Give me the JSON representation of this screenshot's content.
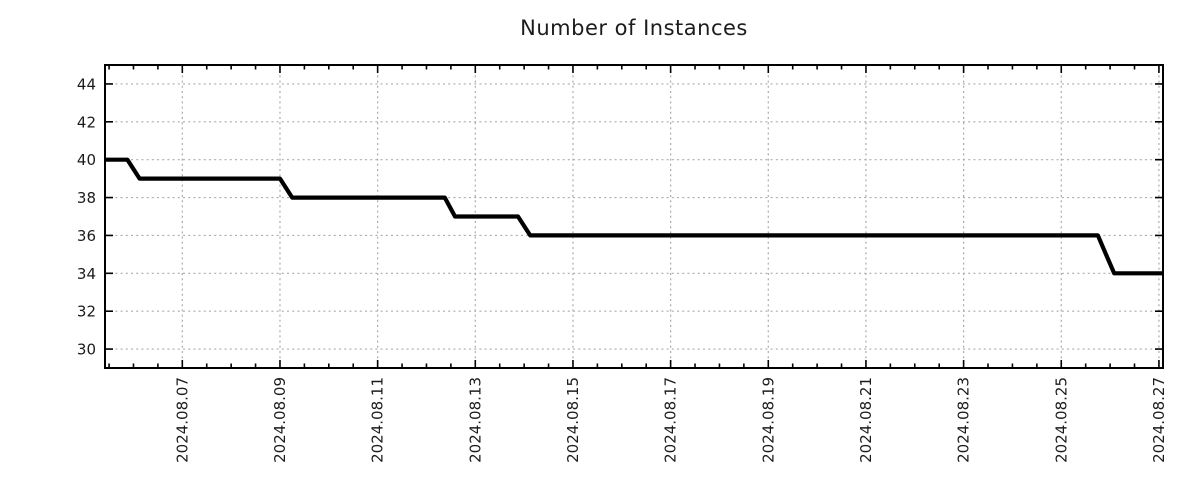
{
  "chart_data": {
    "type": "line",
    "subtype": "step",
    "title": "Number of Instances",
    "grid": true,
    "legend": false,
    "line_color": "#000000",
    "grid_color": "#ababab",
    "axis_color": "#000000",
    "text_color": "#1c1c1c",
    "time_epoch": "2024-08-05 00:00",
    "x_axis": {
      "range_hours": [
        10,
        530
      ],
      "major_tick_hours": [
        48,
        96,
        144,
        192,
        240,
        288,
        336,
        384,
        432,
        480,
        528
      ],
      "tick_labels": [
        "2024.08.07",
        "2024.08.09",
        "2024.08.11",
        "2024.08.13",
        "2024.08.15",
        "2024.08.17",
        "2024.08.19",
        "2024.08.21",
        "2024.08.23",
        "2024.08.25",
        "2024.08.27"
      ],
      "minor_tick_interval_hours": 12
    },
    "y_axis": {
      "range": [
        29,
        45
      ],
      "major_ticks": [
        30,
        32,
        34,
        36,
        38,
        40,
        42,
        44
      ]
    },
    "series": [
      {
        "name": "instances",
        "points": [
          {
            "t_hours": 10,
            "time": "2024-08-05 10:00",
            "value": 40
          },
          {
            "t_hours": 21,
            "time": "2024-08-05 21:00",
            "value": 40
          },
          {
            "t_hours": 27,
            "time": "2024-08-06 03:00",
            "value": 39
          },
          {
            "t_hours": 96,
            "time": "2024-08-09 00:00",
            "value": 39
          },
          {
            "t_hours": 102,
            "time": "2024-08-09 06:00",
            "value": 38
          },
          {
            "t_hours": 177,
            "time": "2024-08-12 09:00",
            "value": 38
          },
          {
            "t_hours": 182,
            "time": "2024-08-12 14:00",
            "value": 37
          },
          {
            "t_hours": 213,
            "time": "2024-08-13 21:00",
            "value": 37
          },
          {
            "t_hours": 219,
            "time": "2024-08-14 03:00",
            "value": 36
          },
          {
            "t_hours": 498,
            "time": "2024-08-25 18:00",
            "value": 36
          },
          {
            "t_hours": 502,
            "time": "2024-08-25 22:00",
            "value": 35
          },
          {
            "t_hours": 506,
            "time": "2024-08-26 02:00",
            "value": 34
          },
          {
            "t_hours": 530,
            "time": "2024-08-27 02:00",
            "value": 34
          }
        ]
      }
    ]
  }
}
